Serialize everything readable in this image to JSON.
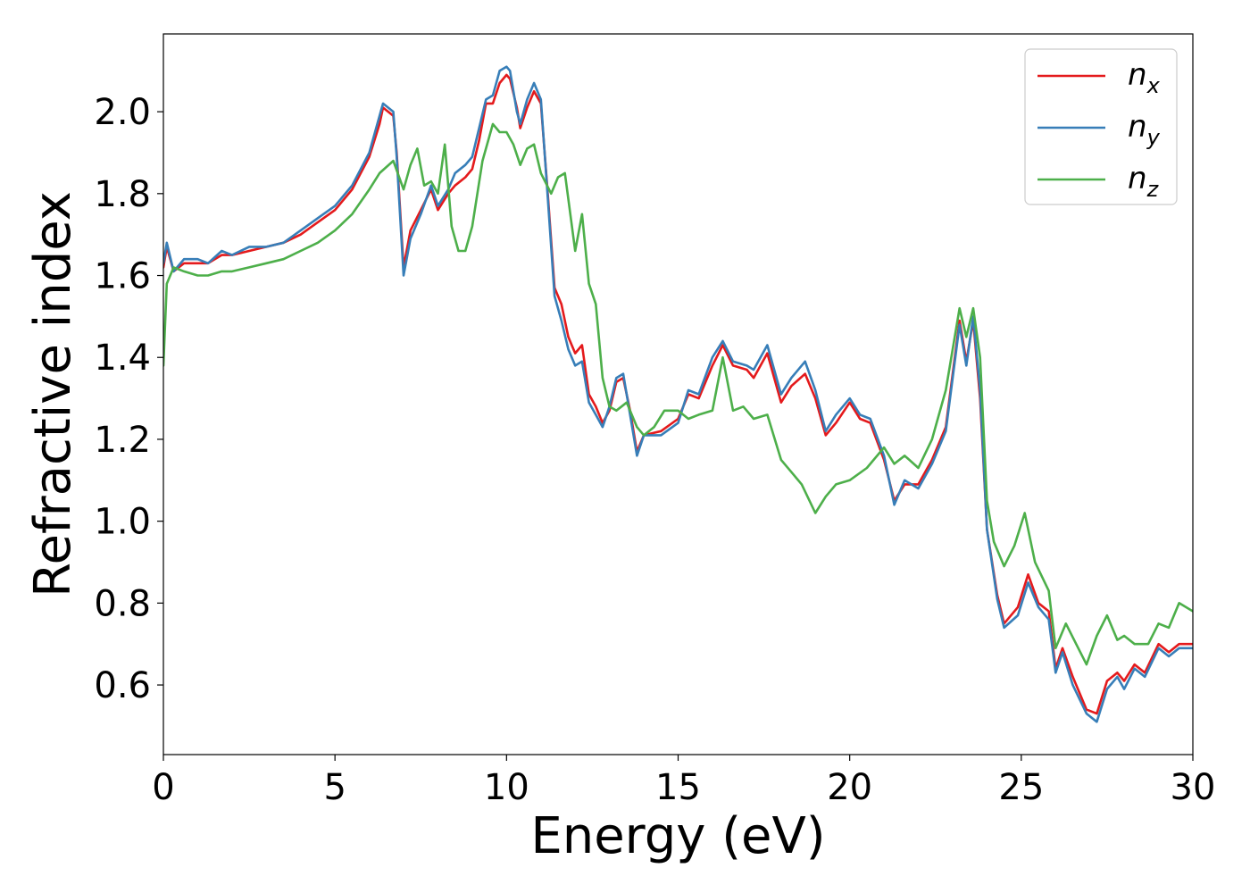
{
  "chart_data": {
    "type": "line",
    "title": "",
    "xlabel": "Energy (eV)",
    "ylabel": "Refractive index",
    "xlim": [
      0,
      30
    ],
    "ylim": [
      0.43,
      2.19
    ],
    "xticks": [
      0,
      5,
      10,
      15,
      20,
      25,
      30
    ],
    "xtick_labels": [
      "0",
      "5",
      "10",
      "15",
      "20",
      "25",
      "30"
    ],
    "yticks": [
      0.6,
      0.8,
      1.0,
      1.2,
      1.4,
      1.6,
      1.8,
      2.0
    ],
    "ytick_labels": [
      "0.6",
      "0.8",
      "1.0",
      "1.2",
      "1.4",
      "1.6",
      "1.8",
      "2.0"
    ],
    "grid": false,
    "legend_position": "top-right",
    "series": [
      {
        "name": "n_x",
        "label_main": "n",
        "label_sub": "x",
        "color": "#e41a1c",
        "points": [
          [
            0,
            1.62
          ],
          [
            0.1,
            1.67
          ],
          [
            0.3,
            1.61
          ],
          [
            0.6,
            1.63
          ],
          [
            1,
            1.63
          ],
          [
            1.3,
            1.63
          ],
          [
            1.7,
            1.65
          ],
          [
            2,
            1.65
          ],
          [
            2.5,
            1.66
          ],
          [
            3,
            1.67
          ],
          [
            3.5,
            1.68
          ],
          [
            4,
            1.7
          ],
          [
            4.5,
            1.73
          ],
          [
            5,
            1.76
          ],
          [
            5.5,
            1.81
          ],
          [
            6,
            1.89
          ],
          [
            6.3,
            1.97
          ],
          [
            6.4,
            2.01
          ],
          [
            6.7,
            1.99
          ],
          [
            6.8,
            1.9
          ],
          [
            7.0,
            1.62
          ],
          [
            7.2,
            1.71
          ],
          [
            7.5,
            1.76
          ],
          [
            7.8,
            1.81
          ],
          [
            8.0,
            1.76
          ],
          [
            8.3,
            1.8
          ],
          [
            8.5,
            1.82
          ],
          [
            8.8,
            1.84
          ],
          [
            9.0,
            1.86
          ],
          [
            9.2,
            1.93
          ],
          [
            9.4,
            2.02
          ],
          [
            9.6,
            2.02
          ],
          [
            9.8,
            2.07
          ],
          [
            10,
            2.09
          ],
          [
            10.1,
            2.08
          ],
          [
            10.3,
            2.01
          ],
          [
            10.4,
            1.96
          ],
          [
            10.6,
            2.01
          ],
          [
            10.8,
            2.05
          ],
          [
            11.0,
            2.02
          ],
          [
            11.2,
            1.8
          ],
          [
            11.4,
            1.57
          ],
          [
            11.6,
            1.53
          ],
          [
            11.8,
            1.45
          ],
          [
            12.0,
            1.41
          ],
          [
            12.2,
            1.43
          ],
          [
            12.4,
            1.31
          ],
          [
            12.6,
            1.28
          ],
          [
            12.8,
            1.24
          ],
          [
            13.0,
            1.27
          ],
          [
            13.2,
            1.34
          ],
          [
            13.4,
            1.35
          ],
          [
            13.6,
            1.27
          ],
          [
            13.8,
            1.17
          ],
          [
            14.0,
            1.21
          ],
          [
            14.5,
            1.22
          ],
          [
            15.0,
            1.25
          ],
          [
            15.3,
            1.31
          ],
          [
            15.6,
            1.3
          ],
          [
            16.0,
            1.38
          ],
          [
            16.3,
            1.43
          ],
          [
            16.6,
            1.38
          ],
          [
            17.0,
            1.37
          ],
          [
            17.2,
            1.35
          ],
          [
            17.6,
            1.41
          ],
          [
            18.0,
            1.29
          ],
          [
            18.3,
            1.33
          ],
          [
            18.7,
            1.36
          ],
          [
            19.0,
            1.3
          ],
          [
            19.3,
            1.21
          ],
          [
            19.6,
            1.24
          ],
          [
            20.0,
            1.29
          ],
          [
            20.3,
            1.25
          ],
          [
            20.6,
            1.24
          ],
          [
            21.0,
            1.15
          ],
          [
            21.3,
            1.05
          ],
          [
            21.6,
            1.09
          ],
          [
            22.0,
            1.09
          ],
          [
            22.4,
            1.15
          ],
          [
            22.8,
            1.23
          ],
          [
            23.2,
            1.49
          ],
          [
            23.4,
            1.39
          ],
          [
            23.6,
            1.49
          ],
          [
            23.8,
            1.3
          ],
          [
            24.0,
            0.98
          ],
          [
            24.3,
            0.82
          ],
          [
            24.5,
            0.75
          ],
          [
            24.9,
            0.79
          ],
          [
            25.2,
            0.87
          ],
          [
            25.5,
            0.8
          ],
          [
            25.8,
            0.78
          ],
          [
            26.0,
            0.64
          ],
          [
            26.2,
            0.69
          ],
          [
            26.5,
            0.62
          ],
          [
            26.9,
            0.54
          ],
          [
            27.2,
            0.53
          ],
          [
            27.5,
            0.61
          ],
          [
            27.8,
            0.63
          ],
          [
            28.0,
            0.61
          ],
          [
            28.3,
            0.65
          ],
          [
            28.6,
            0.63
          ],
          [
            29.0,
            0.7
          ],
          [
            29.3,
            0.68
          ],
          [
            29.6,
            0.7
          ],
          [
            30,
            0.7
          ]
        ]
      },
      {
        "name": "n_y",
        "label_main": "n",
        "label_sub": "y",
        "color": "#377eb8",
        "points": [
          [
            0,
            1.63
          ],
          [
            0.1,
            1.68
          ],
          [
            0.3,
            1.61
          ],
          [
            0.6,
            1.64
          ],
          [
            1,
            1.64
          ],
          [
            1.3,
            1.63
          ],
          [
            1.7,
            1.66
          ],
          [
            2,
            1.65
          ],
          [
            2.5,
            1.67
          ],
          [
            3,
            1.67
          ],
          [
            3.5,
            1.68
          ],
          [
            4,
            1.71
          ],
          [
            4.5,
            1.74
          ],
          [
            5,
            1.77
          ],
          [
            5.5,
            1.82
          ],
          [
            6,
            1.9
          ],
          [
            6.3,
            1.99
          ],
          [
            6.4,
            2.02
          ],
          [
            6.7,
            2.0
          ],
          [
            6.8,
            1.89
          ],
          [
            7.0,
            1.6
          ],
          [
            7.2,
            1.69
          ],
          [
            7.5,
            1.75
          ],
          [
            7.8,
            1.82
          ],
          [
            8.0,
            1.77
          ],
          [
            8.3,
            1.81
          ],
          [
            8.5,
            1.85
          ],
          [
            8.8,
            1.87
          ],
          [
            9.0,
            1.89
          ],
          [
            9.2,
            1.96
          ],
          [
            9.4,
            2.03
          ],
          [
            9.6,
            2.04
          ],
          [
            9.8,
            2.1
          ],
          [
            10,
            2.11
          ],
          [
            10.1,
            2.1
          ],
          [
            10.3,
            2.0
          ],
          [
            10.4,
            1.97
          ],
          [
            10.6,
            2.03
          ],
          [
            10.8,
            2.07
          ],
          [
            11.0,
            2.03
          ],
          [
            11.2,
            1.79
          ],
          [
            11.4,
            1.55
          ],
          [
            11.6,
            1.49
          ],
          [
            11.8,
            1.42
          ],
          [
            12.0,
            1.38
          ],
          [
            12.2,
            1.39
          ],
          [
            12.4,
            1.29
          ],
          [
            12.6,
            1.26
          ],
          [
            12.8,
            1.23
          ],
          [
            13.0,
            1.28
          ],
          [
            13.2,
            1.35
          ],
          [
            13.4,
            1.36
          ],
          [
            13.6,
            1.26
          ],
          [
            13.8,
            1.16
          ],
          [
            14.0,
            1.21
          ],
          [
            14.5,
            1.21
          ],
          [
            15.0,
            1.24
          ],
          [
            15.3,
            1.32
          ],
          [
            15.6,
            1.31
          ],
          [
            16.0,
            1.4
          ],
          [
            16.3,
            1.44
          ],
          [
            16.6,
            1.39
          ],
          [
            17.0,
            1.38
          ],
          [
            17.2,
            1.37
          ],
          [
            17.6,
            1.43
          ],
          [
            18.0,
            1.31
          ],
          [
            18.3,
            1.35
          ],
          [
            18.7,
            1.39
          ],
          [
            19.0,
            1.32
          ],
          [
            19.3,
            1.22
          ],
          [
            19.6,
            1.26
          ],
          [
            20.0,
            1.3
          ],
          [
            20.3,
            1.26
          ],
          [
            20.6,
            1.25
          ],
          [
            21.0,
            1.16
          ],
          [
            21.3,
            1.04
          ],
          [
            21.6,
            1.1
          ],
          [
            22.0,
            1.08
          ],
          [
            22.4,
            1.14
          ],
          [
            22.8,
            1.22
          ],
          [
            23.2,
            1.48
          ],
          [
            23.4,
            1.38
          ],
          [
            23.6,
            1.5
          ],
          [
            23.8,
            1.32
          ],
          [
            24.0,
            0.98
          ],
          [
            24.3,
            0.81
          ],
          [
            24.5,
            0.74
          ],
          [
            24.9,
            0.77
          ],
          [
            25.2,
            0.85
          ],
          [
            25.5,
            0.79
          ],
          [
            25.8,
            0.76
          ],
          [
            26.0,
            0.63
          ],
          [
            26.2,
            0.68
          ],
          [
            26.5,
            0.6
          ],
          [
            26.9,
            0.53
          ],
          [
            27.2,
            0.51
          ],
          [
            27.5,
            0.59
          ],
          [
            27.8,
            0.62
          ],
          [
            28.0,
            0.59
          ],
          [
            28.3,
            0.64
          ],
          [
            28.6,
            0.62
          ],
          [
            29.0,
            0.69
          ],
          [
            29.3,
            0.67
          ],
          [
            29.6,
            0.69
          ],
          [
            30,
            0.69
          ]
        ]
      },
      {
        "name": "n_z",
        "label_main": "n",
        "label_sub": "z",
        "color": "#4daf4a",
        "points": [
          [
            0,
            1.38
          ],
          [
            0.1,
            1.58
          ],
          [
            0.3,
            1.62
          ],
          [
            0.6,
            1.61
          ],
          [
            1,
            1.6
          ],
          [
            1.3,
            1.6
          ],
          [
            1.7,
            1.61
          ],
          [
            2,
            1.61
          ],
          [
            2.5,
            1.62
          ],
          [
            3,
            1.63
          ],
          [
            3.5,
            1.64
          ],
          [
            4,
            1.66
          ],
          [
            4.5,
            1.68
          ],
          [
            5,
            1.71
          ],
          [
            5.5,
            1.75
          ],
          [
            6,
            1.81
          ],
          [
            6.3,
            1.85
          ],
          [
            6.7,
            1.88
          ],
          [
            7.0,
            1.81
          ],
          [
            7.2,
            1.87
          ],
          [
            7.4,
            1.91
          ],
          [
            7.6,
            1.82
          ],
          [
            7.8,
            1.83
          ],
          [
            8.0,
            1.8
          ],
          [
            8.2,
            1.92
          ],
          [
            8.4,
            1.72
          ],
          [
            8.6,
            1.66
          ],
          [
            8.8,
            1.66
          ],
          [
            9.0,
            1.72
          ],
          [
            9.3,
            1.88
          ],
          [
            9.6,
            1.97
          ],
          [
            9.8,
            1.95
          ],
          [
            10.0,
            1.95
          ],
          [
            10.2,
            1.92
          ],
          [
            10.4,
            1.87
          ],
          [
            10.6,
            1.91
          ],
          [
            10.8,
            1.92
          ],
          [
            11.0,
            1.85
          ],
          [
            11.3,
            1.8
          ],
          [
            11.5,
            1.84
          ],
          [
            11.7,
            1.85
          ],
          [
            12.0,
            1.66
          ],
          [
            12.2,
            1.75
          ],
          [
            12.4,
            1.58
          ],
          [
            12.6,
            1.53
          ],
          [
            12.8,
            1.35
          ],
          [
            13.0,
            1.28
          ],
          [
            13.2,
            1.27
          ],
          [
            13.5,
            1.29
          ],
          [
            13.8,
            1.23
          ],
          [
            14.0,
            1.21
          ],
          [
            14.3,
            1.23
          ],
          [
            14.6,
            1.27
          ],
          [
            15.0,
            1.27
          ],
          [
            15.3,
            1.25
          ],
          [
            15.6,
            1.26
          ],
          [
            16.0,
            1.27
          ],
          [
            16.3,
            1.4
          ],
          [
            16.6,
            1.27
          ],
          [
            16.9,
            1.28
          ],
          [
            17.2,
            1.25
          ],
          [
            17.6,
            1.26
          ],
          [
            18.0,
            1.15
          ],
          [
            18.3,
            1.12
          ],
          [
            18.6,
            1.09
          ],
          [
            19.0,
            1.02
          ],
          [
            19.3,
            1.06
          ],
          [
            19.6,
            1.09
          ],
          [
            20.0,
            1.1
          ],
          [
            20.5,
            1.13
          ],
          [
            21.0,
            1.18
          ],
          [
            21.3,
            1.14
          ],
          [
            21.6,
            1.16
          ],
          [
            22.0,
            1.13
          ],
          [
            22.4,
            1.2
          ],
          [
            22.8,
            1.32
          ],
          [
            23.2,
            1.52
          ],
          [
            23.4,
            1.45
          ],
          [
            23.6,
            1.52
          ],
          [
            23.8,
            1.4
          ],
          [
            24.0,
            1.05
          ],
          [
            24.2,
            0.95
          ],
          [
            24.5,
            0.89
          ],
          [
            24.8,
            0.94
          ],
          [
            25.1,
            1.02
          ],
          [
            25.4,
            0.9
          ],
          [
            25.8,
            0.83
          ],
          [
            26.0,
            0.69
          ],
          [
            26.3,
            0.75
          ],
          [
            26.6,
            0.7
          ],
          [
            26.9,
            0.65
          ],
          [
            27.2,
            0.72
          ],
          [
            27.5,
            0.77
          ],
          [
            27.8,
            0.71
          ],
          [
            28.0,
            0.72
          ],
          [
            28.3,
            0.7
          ],
          [
            28.7,
            0.7
          ],
          [
            29.0,
            0.75
          ],
          [
            29.3,
            0.74
          ],
          [
            29.6,
            0.8
          ],
          [
            30,
            0.78
          ]
        ]
      }
    ]
  }
}
